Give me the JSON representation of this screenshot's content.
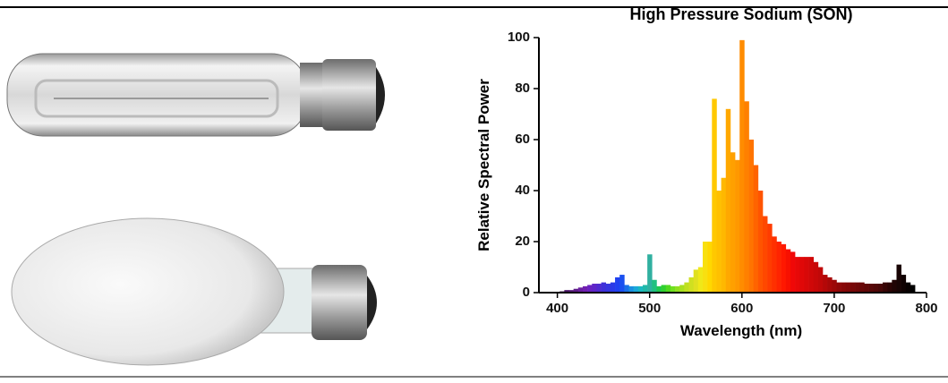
{
  "chart_data": {
    "type": "bar",
    "title": "High Pressure Sodium (SON)",
    "xlabel": "Wavelength (nm)",
    "ylabel": "Relative Spectral Power",
    "x": [
      400,
      405,
      410,
      415,
      420,
      425,
      430,
      435,
      440,
      445,
      450,
      455,
      460,
      465,
      470,
      475,
      480,
      485,
      490,
      495,
      500,
      505,
      510,
      515,
      520,
      525,
      530,
      535,
      540,
      545,
      550,
      555,
      560,
      565,
      570,
      575,
      580,
      585,
      590,
      595,
      600,
      605,
      610,
      615,
      620,
      625,
      630,
      635,
      640,
      645,
      650,
      655,
      660,
      665,
      670,
      675,
      680,
      685,
      690,
      695,
      700,
      705,
      710,
      715,
      720,
      725,
      730,
      735,
      740,
      745,
      750,
      755,
      760,
      765,
      770,
      775,
      780,
      785
    ],
    "values": [
      0,
      0.5,
      1,
      1,
      1.5,
      2,
      2.5,
      3,
      3.5,
      3.5,
      4,
      3.5,
      4,
      6,
      7,
      3,
      2.5,
      2.5,
      2.5,
      3,
      15,
      5,
      2.5,
      3,
      3,
      2.5,
      2.5,
      3,
      4,
      6,
      9,
      10,
      20,
      20,
      76,
      40,
      45,
      72,
      55,
      52,
      99,
      75,
      60,
      50,
      40,
      30,
      27,
      22,
      20,
      19,
      17,
      16,
      14,
      14,
      14,
      14,
      12,
      10,
      7,
      6,
      5,
      4,
      4,
      4,
      4,
      4,
      4,
      3.5,
      3.5,
      3.5,
      3.5,
      4,
      4,
      5,
      11,
      7,
      4,
      3
    ],
    "colors": [
      "#2a0a3a",
      "#3a0f50",
      "#4a1466",
      "#551878",
      "#5e1c88",
      "#6a1fa0",
      "#7020b0",
      "#6a22c0",
      "#5e25c8",
      "#4f2ad0",
      "#3f30d8",
      "#3535e0",
      "#2a3ae8",
      "#2040f0",
      "#1a50f0",
      "#1a70e8",
      "#1a90e0",
      "#1aa8d8",
      "#1ab8c0",
      "#20b8a8",
      "#30b0a0",
      "#20c080",
      "#20c850",
      "#30d030",
      "#50d820",
      "#70e020",
      "#90e020",
      "#a8e020",
      "#c0e020",
      "#d0e020",
      "#e0e020",
      "#f0e818",
      "#f8e010",
      "#ffd800",
      "#ffc800",
      "#ffc000",
      "#ffb800",
      "#ffa800",
      "#ffa000",
      "#ff9800",
      "#ff8c00",
      "#ff8000",
      "#ff7400",
      "#ff6400",
      "#ff5400",
      "#ff4800",
      "#ff3c00",
      "#ff3000",
      "#ff2400",
      "#ff1800",
      "#f81000",
      "#f00808",
      "#e80808",
      "#e00808",
      "#d80808",
      "#d00808",
      "#c80808",
      "#c00808",
      "#b40808",
      "#a80808",
      "#9c0808",
      "#900808",
      "#880808",
      "#800808",
      "#780808",
      "#700808",
      "#680808",
      "#600808",
      "#580808",
      "#500808",
      "#480808",
      "#380606",
      "#2c0404",
      "#200404",
      "#180404",
      "#100202",
      "#080101",
      "#000000"
    ],
    "xlim": [
      380,
      800
    ],
    "ylim": [
      0,
      100
    ],
    "xticks": [
      400,
      500,
      600,
      700,
      800
    ],
    "yticks": [
      0,
      20,
      40,
      60,
      80,
      100
    ]
  }
}
